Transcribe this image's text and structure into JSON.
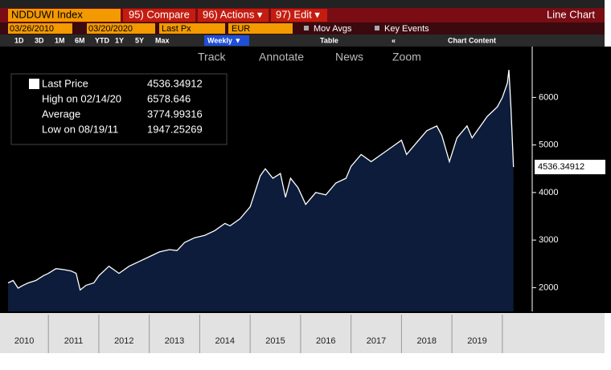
{
  "toolbar": {
    "security": "NDDUWI Index",
    "compare": "95) Compare",
    "actions": "96) Actions ▾",
    "edit": "97) Edit ▾",
    "view": "Line Chart",
    "start_date": "03/26/2010",
    "end_date": "03/20/2020",
    "field": "Last Px",
    "currency": "EUR",
    "mov_avgs": "Mov Avgs",
    "key_events": "Key Events",
    "periods": [
      "1D",
      "3D",
      "1M",
      "6M",
      "YTD",
      "1Y",
      "5Y",
      "Max"
    ],
    "frequency": "Weekly ▼",
    "table": "Table",
    "collapse": "«",
    "chart_content": "Chart Content",
    "tools": [
      "Track",
      "Annotate",
      "News",
      "Zoom"
    ]
  },
  "chart_data": {
    "type": "area",
    "color": "#0c1c3a",
    "line_color": "#ffffff",
    "stats": [
      {
        "label": "Last Price",
        "value": 4536.34912
      },
      {
        "label": "High on 02/14/20",
        "value": 6578.646
      },
      {
        "label": "Average",
        "value": 3774.99316
      },
      {
        "label": "Low on 08/19/11",
        "value": 1947.25269
      }
    ],
    "x": [
      2010.2,
      2010.3,
      2010.4,
      2010.5,
      2010.6,
      2010.75,
      2010.9,
      2011.0,
      2011.15,
      2011.3,
      2011.45,
      2011.55,
      2011.63,
      2011.75,
      2011.9,
      2012.0,
      2012.2,
      2012.4,
      2012.6,
      2012.8,
      2013.0,
      2013.2,
      2013.4,
      2013.55,
      2013.7,
      2013.9,
      2014.1,
      2014.3,
      2014.5,
      2014.6,
      2014.8,
      2015.0,
      2015.2,
      2015.3,
      2015.45,
      2015.6,
      2015.7,
      2015.8,
      2015.95,
      2016.1,
      2016.3,
      2016.5,
      2016.7,
      2016.9,
      2017.0,
      2017.2,
      2017.4,
      2017.6,
      2017.8,
      2018.0,
      2018.1,
      2018.3,
      2018.5,
      2018.7,
      2018.8,
      2018.95,
      2019.1,
      2019.3,
      2019.4,
      2019.6,
      2019.7,
      2019.9,
      2020.0,
      2020.1,
      2020.13,
      2020.17,
      2020.22
    ],
    "values": [
      2100,
      2150,
      1990,
      2050,
      2100,
      2150,
      2250,
      2300,
      2400,
      2380,
      2350,
      2300,
      1950,
      2050,
      2100,
      2250,
      2450,
      2300,
      2450,
      2550,
      2650,
      2750,
      2800,
      2780,
      2950,
      3050,
      3100,
      3200,
      3350,
      3300,
      3450,
      3700,
      4350,
      4500,
      4300,
      4400,
      3900,
      4300,
      4100,
      3750,
      4000,
      3950,
      4200,
      4300,
      4550,
      4800,
      4650,
      4800,
      4950,
      5100,
      4800,
      5050,
      5300,
      5400,
      5200,
      4650,
      5150,
      5400,
      5150,
      5450,
      5600,
      5800,
      6000,
      6300,
      6578.646,
      5800,
      4536.34912
    ],
    "xlim": [
      2010.2,
      2020.56
    ],
    "xticks": [
      {
        "value": 2010,
        "label": "2010"
      },
      {
        "value": 2011,
        "label": "2011"
      },
      {
        "value": 2012,
        "label": "2012"
      },
      {
        "value": 2013,
        "label": "2013"
      },
      {
        "value": 2014,
        "label": "2014"
      },
      {
        "value": 2015,
        "label": "2015"
      },
      {
        "value": 2016,
        "label": "2016"
      },
      {
        "value": 2017,
        "label": "2017"
      },
      {
        "value": 2018,
        "label": "2018"
      },
      {
        "value": 2019,
        "label": "2019"
      },
      {
        "value": 2020,
        "label": ""
      }
    ],
    "ylim": [
      1500,
      7070
    ],
    "yticks": [
      2000,
      3000,
      4000,
      5000,
      6000
    ]
  }
}
